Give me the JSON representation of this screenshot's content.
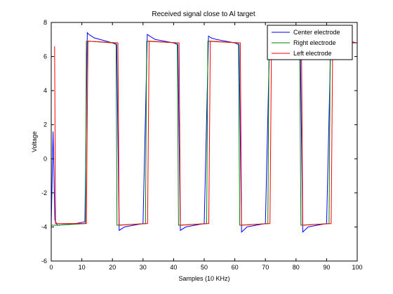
{
  "chart_data": {
    "type": "line",
    "title": "Received signal close to Al target",
    "xlabel": "Samples (10 KHz)",
    "ylabel": "Voltage",
    "xlim": [
      0,
      100
    ],
    "ylim": [
      -6,
      8
    ],
    "xticks": [
      0,
      10,
      20,
      30,
      40,
      50,
      60,
      70,
      80,
      90,
      100
    ],
    "yticks": [
      -6,
      -4,
      -2,
      0,
      2,
      4,
      6,
      8
    ],
    "grid": false,
    "legend_position": "top-right",
    "series": [
      {
        "name": "Center electrode",
        "color": "#0000ff",
        "x": [
          0,
          0.6,
          1.2,
          2,
          8,
          11,
          11.8,
          12.3,
          14,
          20,
          21.4,
          22.2,
          24,
          30,
          31.4,
          32.2,
          34,
          40,
          41.4,
          42.2,
          44,
          50,
          51.4,
          52.2,
          54,
          60,
          61.4,
          62.2,
          64,
          70,
          71.4,
          72.2,
          74,
          80,
          81.4,
          82.2,
          84,
          90,
          91.4,
          92.2,
          94,
          100
        ],
        "y": [
          -3.9,
          1.6,
          -3.6,
          -3.9,
          -3.8,
          -3.7,
          7.4,
          7.3,
          7.1,
          6.8,
          6.7,
          -4.2,
          -4.0,
          -3.8,
          7.3,
          7.2,
          7.0,
          6.8,
          6.7,
          -4.2,
          -4.0,
          -3.8,
          7.2,
          7.1,
          7.0,
          6.8,
          6.7,
          -4.3,
          -4.0,
          -3.8,
          7.3,
          7.1,
          7.0,
          6.8,
          6.7,
          -4.3,
          -4.0,
          -3.8,
          7.2,
          7.1,
          7.0,
          6.8
        ]
      },
      {
        "name": "Right electrode",
        "color": "#008000",
        "x": [
          0,
          1.5,
          11.2,
          11.5,
          12.2,
          20,
          21.2,
          21.5,
          30.8,
          31.2,
          41.2,
          41.6,
          50.8,
          51.2,
          61.2,
          61.6,
          70.8,
          71.2,
          81.2,
          81.6,
          90.8,
          91.2,
          100
        ],
        "y": [
          -3.9,
          -3.9,
          -3.8,
          6.9,
          6.9,
          6.8,
          6.8,
          -3.9,
          -3.8,
          6.9,
          6.8,
          -3.9,
          -3.8,
          6.9,
          6.8,
          -3.9,
          -3.8,
          6.8,
          6.8,
          -3.9,
          -3.8,
          6.8,
          6.8
        ]
      },
      {
        "name": "Left electrode",
        "color": "#ff0000",
        "x": [
          1.1,
          1.4,
          2.4,
          2.7,
          11.5,
          12,
          21.8,
          22.2,
          31.5,
          32,
          41.8,
          42.2,
          51.5,
          52,
          61.8,
          62.2,
          71.5,
          72,
          81.8,
          82.2,
          91.5,
          92,
          100
        ],
        "y": [
          6.6,
          -3.8,
          -3.8,
          -3.8,
          -3.8,
          6.9,
          6.8,
          -3.9,
          -3.8,
          6.9,
          6.8,
          -3.9,
          -3.8,
          6.9,
          6.8,
          -3.9,
          -3.8,
          6.9,
          6.8,
          -3.9,
          -3.8,
          6.9,
          6.8
        ]
      }
    ]
  }
}
